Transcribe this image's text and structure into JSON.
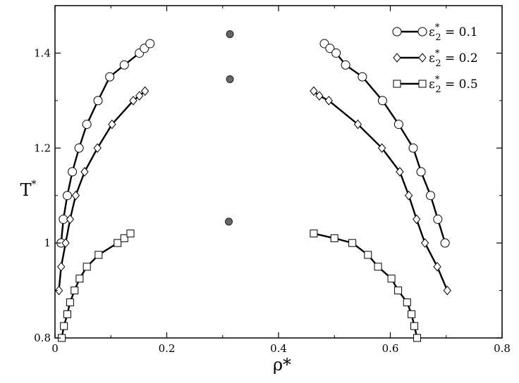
{
  "chart_data": {
    "type": "scatter",
    "xlabel": "ρ*",
    "ylabel": "T*",
    "xlim": [
      0,
      0.8
    ],
    "ylim": [
      0.8,
      1.5
    ],
    "xticks": [
      "0",
      "0.2",
      "0.4",
      "0.6",
      "0.8"
    ],
    "xtick_values": [
      0,
      0.2,
      0.4,
      0.6,
      0.8
    ],
    "yticks": [
      "0.8",
      "1",
      "1.2",
      "1.4"
    ],
    "ytick_values": [
      0.8,
      1.0,
      1.2,
      1.4
    ],
    "legend_position": "top-right",
    "series": [
      {
        "name": "ε*2 = 0.1",
        "legend": {
          "base": "ε",
          "sup": "*",
          "sub": "2",
          "rest": " = 0.1"
        },
        "marker": "circle",
        "segments": [
          [
            [
              0.011,
              1.0
            ],
            [
              0.015,
              1.05
            ],
            [
              0.022,
              1.1
            ],
            [
              0.031,
              1.15
            ],
            [
              0.043,
              1.2
            ],
            [
              0.057,
              1.25
            ],
            [
              0.077,
              1.3
            ],
            [
              0.098,
              1.35
            ],
            [
              0.124,
              1.375
            ],
            [
              0.151,
              1.4
            ],
            [
              0.16,
              1.41
            ],
            [
              0.17,
              1.42
            ]
          ],
          [
            [
              0.482,
              1.42
            ],
            [
              0.492,
              1.41
            ],
            [
              0.503,
              1.4
            ],
            [
              0.52,
              1.375
            ],
            [
              0.55,
              1.35
            ],
            [
              0.586,
              1.3
            ],
            [
              0.615,
              1.25
            ],
            [
              0.641,
              1.2
            ],
            [
              0.655,
              1.15
            ],
            [
              0.672,
              1.1
            ],
            [
              0.685,
              1.05
            ],
            [
              0.698,
              1.0
            ]
          ]
        ]
      },
      {
        "name": "ε*2 = 0.2",
        "legend": {
          "base": "ε",
          "sup": "*",
          "sub": "2",
          "rest": " = 0.2"
        },
        "marker": "diamond",
        "segments": [
          [
            [
              0.007,
              0.9
            ],
            [
              0.011,
              0.95
            ],
            [
              0.019,
              1.0
            ],
            [
              0.027,
              1.05
            ],
            [
              0.037,
              1.1
            ],
            [
              0.053,
              1.15
            ],
            [
              0.076,
              1.2
            ],
            [
              0.102,
              1.25
            ],
            [
              0.14,
              1.3
            ],
            [
              0.151,
              1.31
            ],
            [
              0.161,
              1.32
            ]
          ],
          [
            [
              0.463,
              1.32
            ],
            [
              0.473,
              1.31
            ],
            [
              0.49,
              1.3
            ],
            [
              0.542,
              1.25
            ],
            [
              0.585,
              1.2
            ],
            [
              0.617,
              1.15
            ],
            [
              0.633,
              1.1
            ],
            [
              0.647,
              1.05
            ],
            [
              0.662,
              1.0
            ],
            [
              0.684,
              0.95
            ],
            [
              0.702,
              0.9
            ]
          ]
        ]
      },
      {
        "name": "ε*2 = 0.5",
        "legend": {
          "base": "ε",
          "sup": "*",
          "sub": "2",
          "rest": " = 0.5"
        },
        "marker": "square",
        "segments": [
          [
            [
              0.012,
              0.8
            ],
            [
              0.016,
              0.825
            ],
            [
              0.022,
              0.85
            ],
            [
              0.027,
              0.875
            ],
            [
              0.035,
              0.9
            ],
            [
              0.044,
              0.925
            ],
            [
              0.057,
              0.95
            ],
            [
              0.078,
              0.975
            ],
            [
              0.112,
              1.0
            ],
            [
              0.124,
              1.01
            ],
            [
              0.135,
              1.02
            ]
          ],
          [
            [
              0.463,
              1.02
            ],
            [
              0.5,
              1.01
            ],
            [
              0.532,
              1.0
            ],
            [
              0.56,
              0.975
            ],
            [
              0.578,
              0.95
            ],
            [
              0.602,
              0.925
            ],
            [
              0.614,
              0.9
            ],
            [
              0.63,
              0.875
            ],
            [
              0.638,
              0.85
            ],
            [
              0.643,
              0.825
            ],
            [
              0.648,
              0.8
            ]
          ]
        ]
      },
      {
        "name": "",
        "marker": "filled-circle",
        "color": "#666666",
        "segments": [
          [
            [
              0.313,
              1.44
            ]
          ],
          [
            [
              0.313,
              1.345
            ]
          ],
          [
            [
              0.311,
              1.045
            ]
          ]
        ]
      }
    ]
  }
}
